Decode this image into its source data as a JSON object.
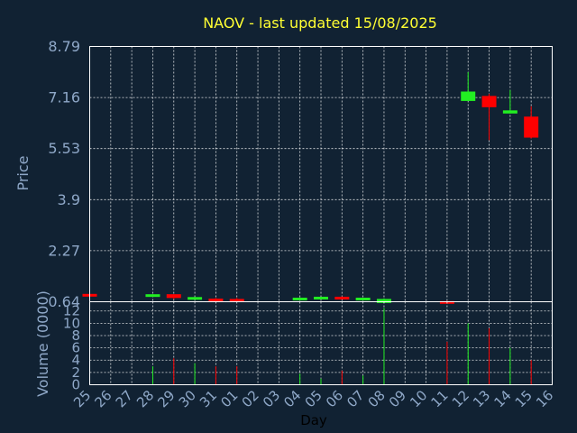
{
  "chart_data": {
    "type": "candlestick",
    "title": "NAOV - last updated 15/08/2025",
    "xlabel": "Day",
    "price_axis": {
      "label": "Price",
      "ylim": [
        0.64,
        8.79
      ],
      "ticks": [
        "8.79",
        "7.16",
        "5.53",
        "3.9",
        "2.27",
        "0.64"
      ]
    },
    "volume_axis": {
      "label": "Volume (0000)",
      "ylim": [
        0,
        13.5
      ],
      "ticks": [
        0,
        2,
        4,
        6,
        8,
        10,
        12
      ]
    },
    "categories": [
      "25",
      "26",
      "27",
      "28",
      "29",
      "30",
      "31",
      "01",
      "02",
      "03",
      "04",
      "05",
      "06",
      "07",
      "08",
      "09",
      "10",
      "11",
      "12",
      "13",
      "14",
      "15",
      "16"
    ],
    "up_color": "#22ee22",
    "down_color": "#ff0000",
    "candles": [
      {
        "day": "25",
        "open": 0.89,
        "high": 0.89,
        "low": 0.82,
        "close": 0.84,
        "volume": 0
      },
      {
        "day": "28",
        "open": 0.82,
        "high": 0.88,
        "low": 0.82,
        "close": 0.88,
        "volume": 3
      },
      {
        "day": "29",
        "open": 0.88,
        "high": 0.88,
        "low": 0.72,
        "close": 0.76,
        "volume": 4.3
      },
      {
        "day": "30",
        "open": 0.74,
        "high": 0.8,
        "low": 0.74,
        "close": 0.79,
        "volume": 3.5
      },
      {
        "day": "31",
        "open": 0.74,
        "high": 0.76,
        "low": 0.7,
        "close": 0.72,
        "volume": 3
      },
      {
        "day": "01",
        "open": 0.73,
        "high": 0.76,
        "low": 0.7,
        "close": 0.71,
        "volume": 3
      },
      {
        "day": "04",
        "open": 0.73,
        "high": 0.78,
        "low": 0.72,
        "close": 0.77,
        "volume": 1.8
      },
      {
        "day": "05",
        "open": 0.77,
        "high": 0.8,
        "low": 0.76,
        "close": 0.8,
        "volume": 1
      },
      {
        "day": "06",
        "open": 0.8,
        "high": 0.81,
        "low": 0.75,
        "close": 0.77,
        "volume": 2.3
      },
      {
        "day": "07",
        "open": 0.72,
        "high": 0.77,
        "low": 0.72,
        "close": 0.77,
        "volume": 1.5
      },
      {
        "day": "08",
        "open": 0.6,
        "high": 0.75,
        "low": 0.6,
        "close": 0.73,
        "volume": 12.5
      },
      {
        "day": "11",
        "open": 0.66,
        "high": 0.66,
        "low": 0.61,
        "close": 0.62,
        "volume": 7
      },
      {
        "day": "12",
        "open": 7.05,
        "high": 7.97,
        "low": 7.05,
        "close": 7.35,
        "volume": 10
      },
      {
        "day": "13",
        "open": 7.21,
        "high": 7.28,
        "low": 5.8,
        "close": 6.85,
        "volume": 9.2
      },
      {
        "day": "14",
        "open": 6.65,
        "high": 7.4,
        "low": 6.65,
        "close": 6.75,
        "volume": 6
      },
      {
        "day": "15",
        "open": 6.55,
        "high": 6.88,
        "low": 5.85,
        "close": 5.88,
        "volume": 4
      }
    ]
  }
}
